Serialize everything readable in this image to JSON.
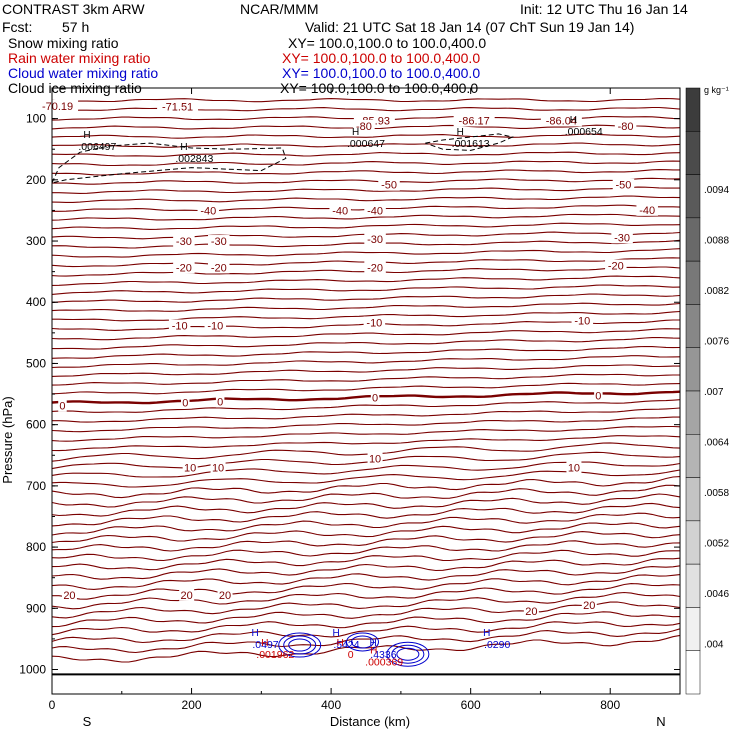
{
  "header": {
    "model": "CONTRAST  3km ARW",
    "center": "NCAR/MMM",
    "init": "Init: 12 UTC Thu 16 Jan 14",
    "fcst_label": "Fcst:",
    "fcst_value": "57 h",
    "valid": "Valid: 21 UTC Sat 18 Jan 14 (07 ChT Sun 19 Jan 14)"
  },
  "legend": {
    "fields": [
      {
        "label": "Snow mixing ratio",
        "xy": "XY=  100.0,100.0 to 100.0,400.0",
        "color": "#000000"
      },
      {
        "label": "Rain water mixing ratio",
        "xy": "XY=  100.0,100.0 to 100.0,400.0",
        "color": "#cc0000"
      },
      {
        "label": "Cloud water mixing ratio",
        "xy": "XY=  100.0,100.0 to 100.0,400.0",
        "color": "#0000cc"
      },
      {
        "label": "Cloud ice mixing ratio",
        "xy": "XY=  100.0,100.0 to 100.0,400.0",
        "color": "#000000"
      }
    ]
  },
  "chart_data": {
    "type": "cross-section",
    "xlabel": "Distance (km)",
    "ylabel": "Pressure (hPa)",
    "x_range": [
      0,
      900
    ],
    "y_range": [
      50,
      1040
    ],
    "x_ticks": [
      0,
      200,
      400,
      600,
      800
    ],
    "y_ticks": [
      100,
      200,
      300,
      400,
      500,
      600,
      700,
      800,
      900,
      1000
    ],
    "endpoints": {
      "left": "S",
      "right": "N"
    },
    "colorbar": {
      "units": "g kg⁻¹",
      "tick_labels": [
        ".0094",
        ".0088",
        ".0082",
        ".0076",
        ".007",
        ".0064",
        ".0058",
        ".0052",
        ".0046",
        ".004"
      ],
      "colors": [
        "#3c3c3c",
        "#4b4b4b",
        "#5a5a5a",
        "#696969",
        "#787878",
        "#878787",
        "#969696",
        "#a5a5a5",
        "#b4b4b4",
        "#c3c3c3",
        "#d2d2d2",
        "#e1e1e1",
        "#f0f0f0",
        "#ffffff"
      ]
    },
    "temperature_contours": {
      "color": "#7a0000",
      "zero_line_color": "#7a0000",
      "labels": [
        {
          "text": "-70.19",
          "x": 8,
          "p": 79
        },
        {
          "text": "-71.51",
          "x": 180,
          "p": 80
        },
        {
          "text": "-85.93",
          "x": 462,
          "p": 103
        },
        {
          "text": "-86.17",
          "x": 605,
          "p": 103
        },
        {
          "text": "-86.04",
          "x": 730,
          "p": 103
        },
        {
          "text": "-80",
          "x": 447,
          "p": 112
        },
        {
          "text": "-80",
          "x": 822,
          "p": 112
        },
        {
          "text": "-50",
          "x": 483,
          "p": 208
        },
        {
          "text": "-50",
          "x": 819,
          "p": 208
        },
        {
          "text": "-40",
          "x": 224,
          "p": 250
        },
        {
          "text": "-40",
          "x": 413,
          "p": 250
        },
        {
          "text": "-40",
          "x": 463,
          "p": 250
        },
        {
          "text": "-40",
          "x": 853,
          "p": 249
        },
        {
          "text": "-30",
          "x": 189,
          "p": 300
        },
        {
          "text": "-30",
          "x": 239,
          "p": 300
        },
        {
          "text": "-30",
          "x": 463,
          "p": 297
        },
        {
          "text": "-30",
          "x": 817,
          "p": 294
        },
        {
          "text": "-20",
          "x": 189,
          "p": 343
        },
        {
          "text": "-20",
          "x": 239,
          "p": 343
        },
        {
          "text": "-20",
          "x": 463,
          "p": 343
        },
        {
          "text": "-20",
          "x": 808,
          "p": 340
        },
        {
          "text": "-10",
          "x": 183,
          "p": 438
        },
        {
          "text": "-10",
          "x": 234,
          "p": 438
        },
        {
          "text": "-10",
          "x": 462,
          "p": 433
        },
        {
          "text": "-10",
          "x": 760,
          "p": 430
        },
        {
          "text": "0",
          "x": 15,
          "p": 569
        },
        {
          "text": "0",
          "x": 191,
          "p": 564
        },
        {
          "text": "0",
          "x": 241,
          "p": 562
        },
        {
          "text": "0",
          "x": 463,
          "p": 556
        },
        {
          "text": "0",
          "x": 783,
          "p": 552
        },
        {
          "text": "10",
          "x": 198,
          "p": 670
        },
        {
          "text": "10",
          "x": 238,
          "p": 670
        },
        {
          "text": "10",
          "x": 463,
          "p": 655
        },
        {
          "text": "10",
          "x": 748,
          "p": 670
        },
        {
          "text": "20",
          "x": 25,
          "p": 878
        },
        {
          "text": "20",
          "x": 193,
          "p": 878
        },
        {
          "text": "20",
          "x": 248,
          "p": 878
        },
        {
          "text": "20",
          "x": 687,
          "p": 904
        },
        {
          "text": "20",
          "x": 770,
          "p": 895
        }
      ]
    },
    "maxima": [
      {
        "text": ".006497",
        "x": 65,
        "p": 145,
        "color": "#000000"
      },
      {
        "text": ".002843",
        "x": 204,
        "p": 164,
        "color": "#000000"
      },
      {
        "text": ".000647",
        "x": 450,
        "p": 140,
        "color": "#000000"
      },
      {
        "text": ".001613",
        "x": 600,
        "p": 140,
        "color": "#000000"
      },
      {
        "text": ".000654",
        "x": 762,
        "p": 120,
        "color": "#000000"
      },
      {
        "text": ".0497",
        "x": 306,
        "p": 958,
        "color": "#0000cc"
      },
      {
        "text": ".5424",
        "x": 422,
        "p": 958,
        "color": "#0000cc"
      },
      {
        "text": ".4336",
        "x": 475,
        "p": 975,
        "color": "#0000cc"
      },
      {
        "text": ".0290",
        "x": 638,
        "p": 958,
        "color": "#0000cc"
      },
      {
        "text": ".001962",
        "x": 320,
        "p": 975,
        "color": "#cc0000"
      },
      {
        "text": "0",
        "x": 428,
        "p": 975,
        "color": "#cc0000"
      },
      {
        "text": ".000369",
        "x": 476,
        "p": 987,
        "color": "#cc0000"
      }
    ]
  }
}
